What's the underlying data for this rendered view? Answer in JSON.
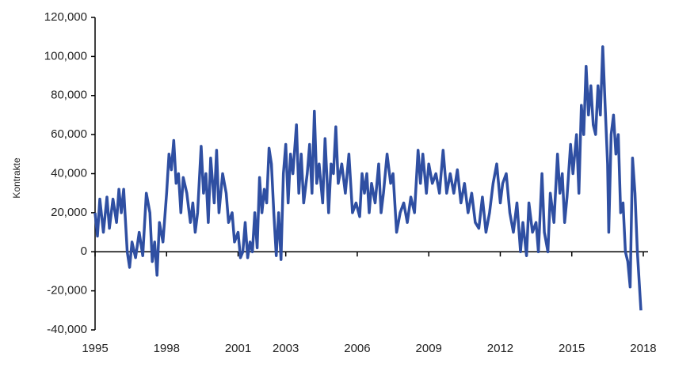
{
  "chart_data": {
    "type": "line",
    "y_label": "Kontrakte",
    "x": [
      1995.0,
      1995.1,
      1995.2,
      1995.35,
      1995.5,
      1995.6,
      1995.75,
      1995.9,
      1996.0,
      1996.1,
      1996.2,
      1996.35,
      1996.45,
      1996.55,
      1996.7,
      1996.85,
      1997.0,
      1997.15,
      1997.3,
      1997.4,
      1997.5,
      1997.6,
      1997.7,
      1997.85,
      1998.0,
      1998.1,
      1998.2,
      1998.3,
      1998.4,
      1998.5,
      1998.6,
      1998.7,
      1998.85,
      1999.0,
      1999.1,
      1999.2,
      1999.3,
      1999.45,
      1999.55,
      1999.65,
      1999.75,
      1999.85,
      2000.0,
      2000.1,
      2000.2,
      2000.35,
      2000.5,
      2000.6,
      2000.75,
      2000.85,
      2001.0,
      2001.1,
      2001.2,
      2001.3,
      2001.4,
      2001.5,
      2001.6,
      2001.7,
      2001.8,
      2001.9,
      2002.0,
      2002.1,
      2002.2,
      2002.3,
      2002.4,
      2002.5,
      2002.6,
      2002.7,
      2002.8,
      2002.9,
      2003.0,
      2003.1,
      2003.2,
      2003.3,
      2003.45,
      2003.55,
      2003.65,
      2003.75,
      2003.9,
      2004.0,
      2004.1,
      2004.2,
      2004.3,
      2004.4,
      2004.55,
      2004.65,
      2004.8,
      2004.9,
      2005.0,
      2005.1,
      2005.2,
      2005.35,
      2005.5,
      2005.65,
      2005.8,
      2005.95,
      2006.1,
      2006.2,
      2006.3,
      2006.4,
      2006.5,
      2006.6,
      2006.75,
      2006.9,
      2007.0,
      2007.1,
      2007.25,
      2007.4,
      2007.5,
      2007.65,
      2007.8,
      2007.95,
      2008.1,
      2008.25,
      2008.4,
      2008.55,
      2008.65,
      2008.75,
      2008.9,
      2009.0,
      2009.15,
      2009.3,
      2009.45,
      2009.6,
      2009.75,
      2009.9,
      2010.05,
      2010.2,
      2010.35,
      2010.5,
      2010.65,
      2010.8,
      2010.95,
      2011.1,
      2011.25,
      2011.4,
      2011.55,
      2011.7,
      2011.85,
      2012.0,
      2012.1,
      2012.25,
      2012.4,
      2012.55,
      2012.7,
      2012.85,
      2012.95,
      2013.1,
      2013.2,
      2013.35,
      2013.5,
      2013.6,
      2013.75,
      2013.85,
      2014.0,
      2014.1,
      2014.25,
      2014.4,
      2014.5,
      2014.6,
      2014.7,
      2014.8,
      2014.95,
      2015.05,
      2015.2,
      2015.3,
      2015.4,
      2015.5,
      2015.6,
      2015.7,
      2015.8,
      2015.9,
      2016.0,
      2016.1,
      2016.2,
      2016.3,
      2016.4,
      2016.5,
      2016.55,
      2016.65,
      2016.75,
      2016.85,
      2016.95,
      2017.05,
      2017.15,
      2017.25,
      2017.35,
      2017.45,
      2017.55,
      2017.65,
      2017.75,
      2017.9
    ],
    "series": [
      {
        "name": "Kontrakte",
        "color": "#2f4fa2",
        "values": [
          20000,
          8000,
          27000,
          10000,
          28000,
          12000,
          27000,
          15000,
          32000,
          20000,
          32000,
          0,
          -8000,
          5000,
          -3000,
          10000,
          -2000,
          30000,
          20000,
          -5000,
          5000,
          -12000,
          15000,
          5000,
          30000,
          50000,
          42000,
          57000,
          35000,
          40000,
          20000,
          38000,
          30000,
          15000,
          25000,
          10000,
          20000,
          54000,
          30000,
          40000,
          15000,
          48000,
          25000,
          52000,
          20000,
          40000,
          30000,
          15000,
          20000,
          5000,
          10000,
          -3000,
          0,
          15000,
          -3000,
          5000,
          0,
          20000,
          2000,
          38000,
          20000,
          32000,
          25000,
          53000,
          45000,
          20000,
          -2000,
          20000,
          -4000,
          40000,
          55000,
          25000,
          50000,
          40000,
          65000,
          30000,
          50000,
          25000,
          40000,
          55000,
          30000,
          72000,
          35000,
          45000,
          25000,
          58000,
          20000,
          45000,
          40000,
          64000,
          35000,
          45000,
          30000,
          50000,
          20000,
          25000,
          18000,
          40000,
          30000,
          40000,
          20000,
          35000,
          25000,
          45000,
          20000,
          30000,
          50000,
          35000,
          40000,
          10000,
          20000,
          25000,
          15000,
          28000,
          20000,
          52000,
          35000,
          50000,
          30000,
          45000,
          35000,
          40000,
          30000,
          52000,
          30000,
          40000,
          30000,
          42000,
          25000,
          35000,
          20000,
          30000,
          15000,
          12000,
          28000,
          10000,
          20000,
          35000,
          45000,
          25000,
          35000,
          40000,
          20000,
          10000,
          25000,
          0,
          15000,
          -2000,
          25000,
          10000,
          15000,
          0,
          40000,
          10000,
          0,
          30000,
          15000,
          50000,
          30000,
          40000,
          15000,
          28000,
          55000,
          40000,
          60000,
          30000,
          75000,
          60000,
          95000,
          70000,
          85000,
          65000,
          60000,
          85000,
          70000,
          105000,
          75000,
          45000,
          10000,
          60000,
          70000,
          50000,
          60000,
          20000,
          25000,
          0,
          -5000,
          -18000,
          48000,
          30000,
          0,
          -30000
        ]
      }
    ],
    "xlim": [
      1995,
      2018.2
    ],
    "xticks": [
      1995,
      1998,
      2001,
      2003,
      2006,
      2009,
      2012,
      2015,
      2018
    ],
    "ylim": [
      -40000,
      120000
    ],
    "yticks": [
      {
        "value": -40000,
        "label": "-40,000"
      },
      {
        "value": -20000,
        "label": "-20,000"
      },
      0,
      {
        "value": 20000,
        "label": "20,000"
      },
      {
        "value": 40000,
        "label": "40,000"
      },
      {
        "value": 60000,
        "label": "60,000"
      },
      {
        "value": 80000,
        "label": "80,000"
      },
      {
        "value": 100000,
        "label": "100,000"
      },
      {
        "value": 120000,
        "label": "120,000"
      }
    ]
  }
}
